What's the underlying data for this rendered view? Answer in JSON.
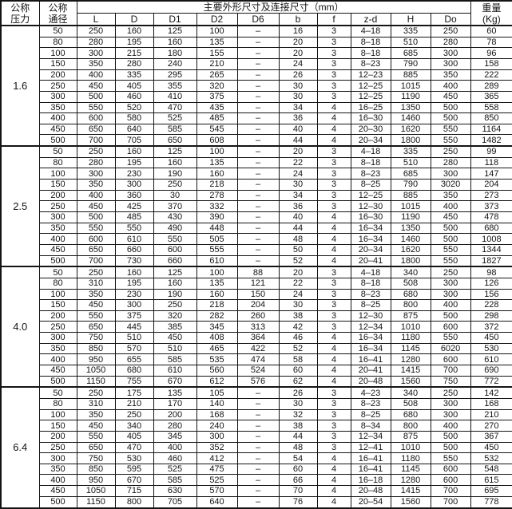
{
  "header": {
    "col_pressure": [
      "公称",
      "压力"
    ],
    "col_diameter": [
      "公称",
      "通径"
    ],
    "main_span": "主要外形尺寸及连接尺寸（mm）",
    "sub_cols": [
      "L",
      "D",
      "D1",
      "D2",
      "D6",
      "b",
      "f",
      "z-d",
      "H",
      "Do"
    ],
    "col_weight": [
      "重量",
      "(Kg)"
    ]
  },
  "sections": [
    {
      "pressure": "1.6",
      "rows": [
        [
          "50",
          "250",
          "160",
          "125",
          "100",
          "–",
          "16",
          "3",
          "4–18",
          "335",
          "250",
          "60"
        ],
        [
          "80",
          "280",
          "195",
          "160",
          "135",
          "–",
          "20",
          "3",
          "8–18",
          "510",
          "280",
          "78"
        ],
        [
          "100",
          "300",
          "215",
          "180",
          "155",
          "–",
          "20",
          "3",
          "8–18",
          "685",
          "300",
          "96"
        ],
        [
          "150",
          "350",
          "280",
          "240",
          "210",
          "–",
          "24",
          "3",
          "8–23",
          "790",
          "300",
          "158"
        ],
        [
          "200",
          "400",
          "335",
          "295",
          "265",
          "–",
          "26",
          "3",
          "12–23",
          "885",
          "350",
          "222"
        ],
        [
          "250",
          "450",
          "405",
          "355",
          "320",
          "–",
          "30",
          "3",
          "12–25",
          "1015",
          "400",
          "289"
        ],
        [
          "300",
          "500",
          "460",
          "410",
          "375",
          "–",
          "30",
          "3",
          "12–25",
          "1190",
          "450",
          "365"
        ],
        [
          "350",
          "550",
          "520",
          "470",
          "435",
          "–",
          "34",
          "4",
          "16–25",
          "1350",
          "500",
          "558"
        ],
        [
          "400",
          "600",
          "580",
          "525",
          "485",
          "–",
          "36",
          "4",
          "16–30",
          "1460",
          "500",
          "850"
        ],
        [
          "450",
          "650",
          "640",
          "585",
          "545",
          "–",
          "40",
          "4",
          "20–30",
          "1620",
          "550",
          "1164"
        ],
        [
          "500",
          "700",
          "705",
          "650",
          "608",
          "–",
          "44",
          "4",
          "20–34",
          "1800",
          "550",
          "1482"
        ]
      ]
    },
    {
      "pressure": "2.5",
      "rows": [
        [
          "50",
          "250",
          "160",
          "125",
          "100",
          "–",
          "20",
          "3",
          "4–18",
          "335",
          "250",
          "99"
        ],
        [
          "80",
          "280",
          "195",
          "160",
          "135",
          "–",
          "22",
          "3",
          "8–18",
          "510",
          "280",
          "118"
        ],
        [
          "100",
          "300",
          "230",
          "190",
          "160",
          "–",
          "24",
          "3",
          "8–23",
          "685",
          "300",
          "147"
        ],
        [
          "150",
          "350",
          "300",
          "250",
          "218",
          "–",
          "30",
          "3",
          "8–25",
          "790",
          "3020",
          "204"
        ],
        [
          "200",
          "400",
          "360",
          "30",
          "278",
          "–",
          "34",
          "3",
          "12–25",
          "885",
          "350",
          "273"
        ],
        [
          "250",
          "450",
          "425",
          "370",
          "332",
          "–",
          "36",
          "3",
          "12–30",
          "1015",
          "400",
          "373"
        ],
        [
          "300",
          "500",
          "485",
          "430",
          "390",
          "–",
          "40",
          "4",
          "16–30",
          "1190",
          "450",
          "478"
        ],
        [
          "350",
          "550",
          "550",
          "490",
          "448",
          "–",
          "44",
          "4",
          "16–34",
          "1350",
          "500",
          "680"
        ],
        [
          "400",
          "600",
          "610",
          "550",
          "505",
          "–",
          "48",
          "4",
          "16–34",
          "1460",
          "500",
          "1008"
        ],
        [
          "450",
          "650",
          "660",
          "600",
          "555",
          "–",
          "50",
          "4",
          "20–34",
          "1620",
          "550",
          "1344"
        ],
        [
          "500",
          "700",
          "730",
          "660",
          "610",
          "–",
          "52",
          "4",
          "20–41",
          "1800",
          "550",
          "1827"
        ]
      ]
    },
    {
      "pressure": "4.0",
      "rows": [
        [
          "50",
          "250",
          "160",
          "125",
          "100",
          "88",
          "20",
          "3",
          "4–18",
          "340",
          "250",
          "98"
        ],
        [
          "80",
          "310",
          "195",
          "160",
          "135",
          "121",
          "22",
          "3",
          "8–18",
          "508",
          "300",
          "126"
        ],
        [
          "100",
          "350",
          "230",
          "190",
          "160",
          "150",
          "24",
          "3",
          "8–23",
          "680",
          "300",
          "156"
        ],
        [
          "150",
          "450",
          "300",
          "250",
          "218",
          "204",
          "30",
          "3",
          "8–25",
          "800",
          "400",
          "228"
        ],
        [
          "200",
          "550",
          "375",
          "320",
          "282",
          "260",
          "38",
          "3",
          "12–30",
          "875",
          "500",
          "298"
        ],
        [
          "250",
          "650",
          "445",
          "385",
          "345",
          "313",
          "42",
          "3",
          "12–34",
          "1010",
          "600",
          "372"
        ],
        [
          "300",
          "750",
          "510",
          "450",
          "408",
          "364",
          "46",
          "4",
          "16–34",
          "1180",
          "550",
          "450"
        ],
        [
          "350",
          "850",
          "570",
          "510",
          "465",
          "422",
          "52",
          "4",
          "16–34",
          "1145",
          "6020",
          "530"
        ],
        [
          "400",
          "950",
          "655",
          "585",
          "535",
          "474",
          "58",
          "4",
          "16–41",
          "1280",
          "600",
          "610"
        ],
        [
          "450",
          "1050",
          "680",
          "610",
          "560",
          "524",
          "60",
          "4",
          "20–41",
          "1415",
          "700",
          "690"
        ],
        [
          "500",
          "1150",
          "755",
          "670",
          "612",
          "576",
          "62",
          "4",
          "20–48",
          "1560",
          "750",
          "772"
        ]
      ]
    },
    {
      "pressure": "6.4",
      "rows": [
        [
          "50",
          "250",
          "175",
          "135",
          "105",
          "–",
          "26",
          "3",
          "4–23",
          "340",
          "250",
          "142"
        ],
        [
          "80",
          "310",
          "210",
          "170",
          "140",
          "–",
          "30",
          "3",
          "8–23",
          "508",
          "300",
          "168"
        ],
        [
          "100",
          "350",
          "250",
          "200",
          "168",
          "–",
          "32",
          "3",
          "8–25",
          "680",
          "300",
          "210"
        ],
        [
          "150",
          "450",
          "340",
          "280",
          "240",
          "–",
          "38",
          "3",
          "8–34",
          "800",
          "400",
          "270"
        ],
        [
          "200",
          "550",
          "405",
          "345",
          "300",
          "–",
          "44",
          "3",
          "12–34",
          "875",
          "500",
          "367"
        ],
        [
          "250",
          "650",
          "470",
          "400",
          "352",
          "–",
          "48",
          "3",
          "12–41",
          "1010",
          "500",
          "450"
        ],
        [
          "300",
          "750",
          "530",
          "460",
          "412",
          "–",
          "54",
          "4",
          "16–41",
          "1180",
          "550",
          "532"
        ],
        [
          "350",
          "850",
          "595",
          "525",
          "475",
          "–",
          "60",
          "4",
          "16–41",
          "1145",
          "600",
          "548"
        ],
        [
          "400",
          "950",
          "670",
          "585",
          "525",
          "–",
          "66",
          "4",
          "16–18",
          "1280",
          "600",
          "615"
        ],
        [
          "450",
          "1050",
          "715",
          "630",
          "570",
          "–",
          "70",
          "4",
          "20–48",
          "1415",
          "700",
          "695"
        ],
        [
          "500",
          "1150",
          "800",
          "705",
          "640",
          "–",
          "76",
          "4",
          "20–54",
          "1560",
          "700",
          "778"
        ]
      ]
    }
  ]
}
